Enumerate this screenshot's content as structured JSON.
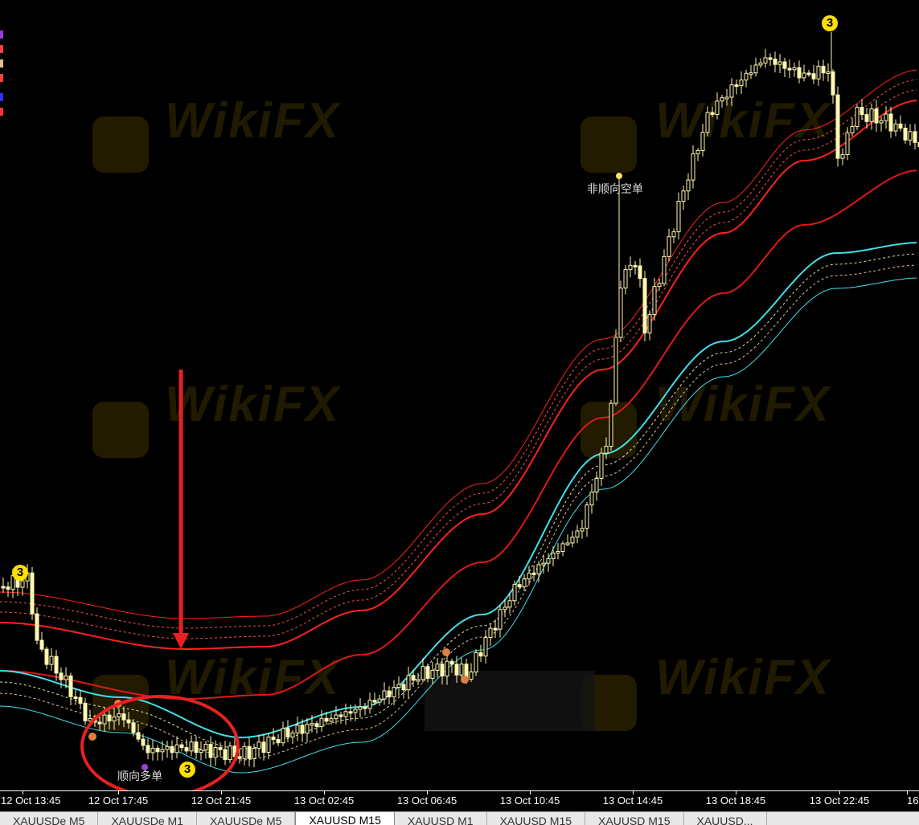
{
  "chart_data": {
    "type": "candlestick",
    "title": "",
    "symbol_timeframe": "XAUUSD M15",
    "x_ticks": [
      "12 Oct 13:45",
      "12 Oct 17:45",
      "12 Oct 21:45",
      "13 Oct 02:45",
      "13 Oct 06:45",
      "13 Oct 10:45",
      "13 Oct 14:45",
      "13 Oct 18:45",
      "13 Oct 22:45",
      "16"
    ],
    "x_ticks_display": [
      "Oct 13:45",
      "12 Oct 17:45",
      "12 Oct 21:45",
      "13 Oct 02:45",
      "13 Oct 06:45",
      "13 Oct 10:45",
      "13 Oct 14:45",
      "13 Oct 18:45",
      "13 Oct 22:45",
      "16"
    ],
    "grid": false,
    "y_axis_visible": false,
    "indicators": [
      {
        "type": "band",
        "color": "#ff2020",
        "style": "thin outer / dashed / thick inner"
      },
      {
        "type": "line",
        "color": "#e01818"
      },
      {
        "type": "band",
        "color": "#40e0e8",
        "style": "thick inner / dashed / thin outer"
      }
    ],
    "annotations": {
      "long_signal": "顺向多单",
      "short_signal": "非顺向空单",
      "badge_value": "3"
    },
    "colors": {
      "candle": "#fff8b0",
      "upper_band": "#ff2020",
      "lower_band": "#40e0e8",
      "highlight": "#e82020",
      "badge": "#ffe000"
    }
  },
  "watermark": "WikiFX",
  "tabs": [
    "XAUUSDe M5",
    "XAUUSDe M1",
    "XAUUSDe M5",
    "XAUUSD M15",
    "XAUUSD M1",
    "XAUUSD M15",
    "XAUUSD M15",
    "XAUUSD..."
  ],
  "active_tab": 3
}
